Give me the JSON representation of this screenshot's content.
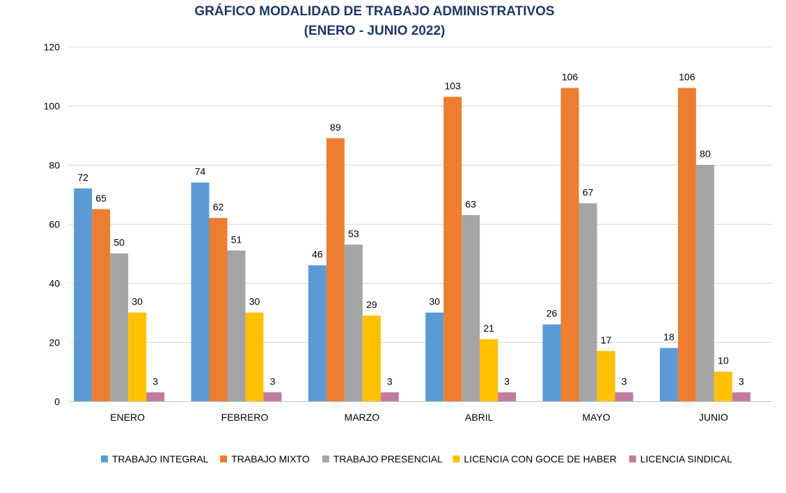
{
  "chart_data": {
    "type": "bar",
    "title": "GRÁFICO MODALIDAD DE TRABAJO ADMINISTRATIVOS",
    "subtitle": "(ENERO - JUNIO 2022)",
    "xlabel": "",
    "ylabel": "",
    "ylim": [
      0,
      120
    ],
    "yticks": [
      0,
      20,
      40,
      60,
      80,
      100,
      120
    ],
    "grid": true,
    "legend_position": "bottom",
    "categories": [
      "ENERO",
      "FEBRERO",
      "MARZO",
      "ABRIL",
      "MAYO",
      "JUNIO"
    ],
    "series": [
      {
        "name": "TRABAJO INTEGRAL",
        "color": "#5b9bd5",
        "values": [
          72,
          74,
          46,
          30,
          26,
          18
        ]
      },
      {
        "name": "TRABAJO MIXTO",
        "color": "#ed7d31",
        "values": [
          65,
          62,
          89,
          103,
          106,
          106
        ]
      },
      {
        "name": "TRABAJO PRESENCIAL",
        "color": "#a5a5a5",
        "values": [
          50,
          51,
          53,
          63,
          67,
          80
        ]
      },
      {
        "name": "LICENCIA CON GOCE DE HABER",
        "color": "#ffc000",
        "values": [
          30,
          30,
          29,
          21,
          17,
          10
        ]
      },
      {
        "name": "LICENCIA SINDICAL",
        "color": "#c27ba0",
        "values": [
          3,
          3,
          3,
          3,
          3,
          3
        ]
      }
    ]
  }
}
